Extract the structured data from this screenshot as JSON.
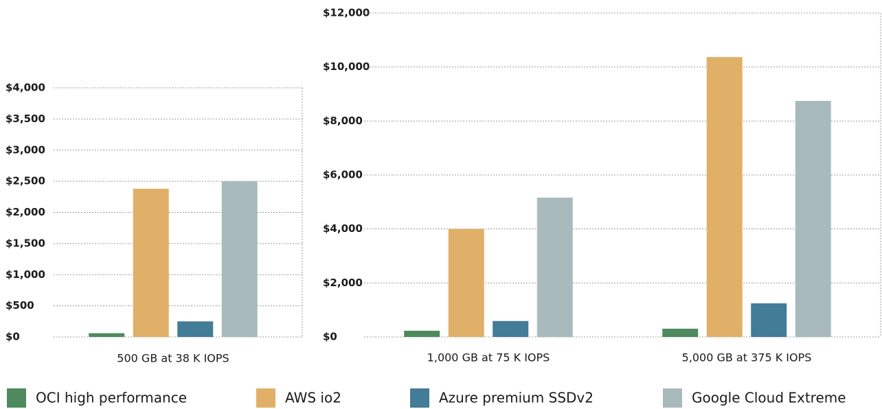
{
  "chart_data": [
    {
      "type": "bar",
      "categories": [
        "500 GB at 38 K IOPS"
      ],
      "series": [
        {
          "name": "OCI high performance",
          "color": "#4e8a5e",
          "values": [
            60
          ]
        },
        {
          "name": "AWS  io2",
          "color": "#e0b068",
          "values": [
            2380
          ]
        },
        {
          "name": "Azure premium SSDv2",
          "color": "#437c96",
          "values": [
            250
          ]
        },
        {
          "name": "Google Cloud Extreme",
          "color": "#a9babd",
          "values": [
            2500
          ]
        }
      ],
      "ylim": [
        0,
        4000
      ],
      "yticks": [
        {
          "value": 0,
          "label": "$0"
        },
        {
          "value": 500,
          "label": "$500"
        },
        {
          "value": 1000,
          "label": "$1,000"
        },
        {
          "value": 1500,
          "label": "$1,500"
        },
        {
          "value": 2000,
          "label": "$2,000"
        },
        {
          "value": 2500,
          "label": "$2,500"
        },
        {
          "value": 3000,
          "label": "$3,000"
        },
        {
          "value": 3500,
          "label": "$3,500"
        },
        {
          "value": 4000,
          "label": "$4,000"
        }
      ],
      "grid": true
    },
    {
      "type": "bar",
      "categories": [
        "1,000 GB at 75 K IOPS",
        "5,000 GB at 375 K IOPS"
      ],
      "series": [
        {
          "name": "OCI high performance",
          "color": "#4e8a5e",
          "values": [
            230,
            305
          ]
        },
        {
          "name": "AWS  io2",
          "color": "#e0b068",
          "values": [
            4000,
            10370
          ]
        },
        {
          "name": "Azure premium SSDv2",
          "color": "#437c96",
          "values": [
            590,
            1245
          ]
        },
        {
          "name": "Google Cloud Extreme",
          "color": "#a9babd",
          "values": [
            5160,
            8745
          ]
        }
      ],
      "ylim": [
        0,
        12000
      ],
      "yticks": [
        {
          "value": 0,
          "label": "$0"
        },
        {
          "value": 2000,
          "label": "$2,000"
        },
        {
          "value": 4000,
          "label": "$4,000"
        },
        {
          "value": 6000,
          "label": "$6,000"
        },
        {
          "value": 8000,
          "label": "$8,000"
        },
        {
          "value": 10000,
          "label": "$10,000"
        },
        {
          "value": 12000,
          "label": "$12,000"
        }
      ],
      "grid": true
    }
  ]
}
